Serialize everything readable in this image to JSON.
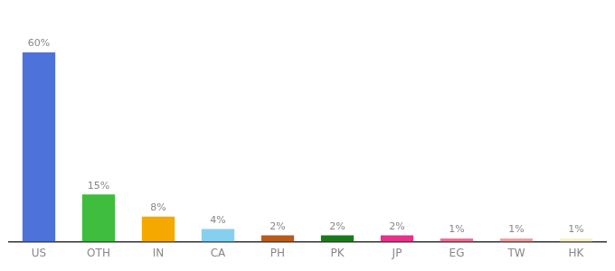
{
  "chart_data": {
    "type": "bar",
    "categories": [
      "US",
      "OTH",
      "IN",
      "CA",
      "PH",
      "PK",
      "JP",
      "EG",
      "TW",
      "HK"
    ],
    "values": [
      60,
      15,
      8,
      4,
      2,
      2,
      2,
      1,
      1,
      1
    ],
    "value_labels": [
      "60%",
      "15%",
      "8%",
      "4%",
      "2%",
      "2%",
      "2%",
      "1%",
      "1%",
      "1%"
    ],
    "colors": [
      "#4d72d9",
      "#3ebd3e",
      "#f5a800",
      "#85d0f0",
      "#b85c1a",
      "#1a7a1a",
      "#e8318a",
      "#f07090",
      "#f0a0a0",
      "#f5f0c8"
    ],
    "ylim": [
      0,
      68
    ],
    "data_labels": true,
    "tick_labels": "x",
    "grid": false
  }
}
